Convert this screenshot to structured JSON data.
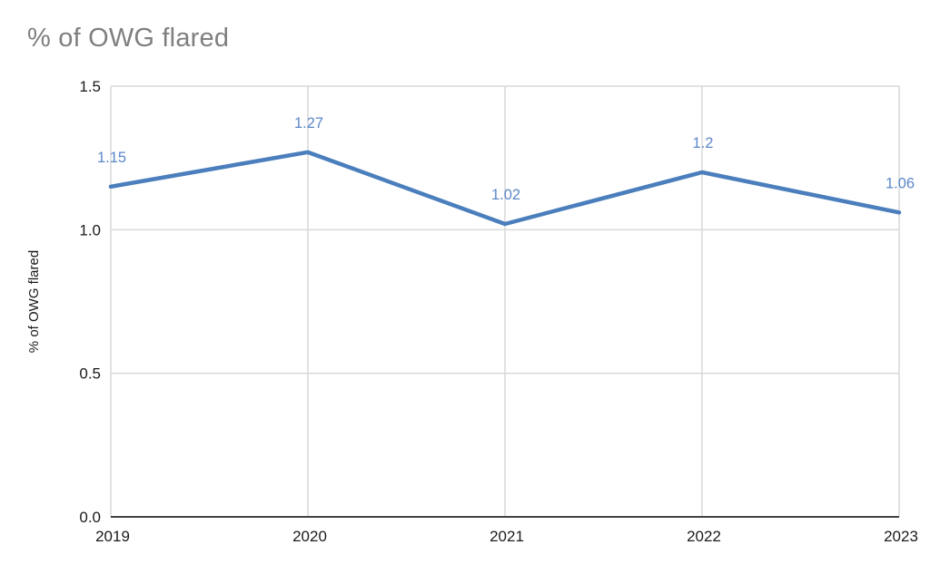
{
  "chart_data": {
    "type": "line",
    "title": "% of OWG flared",
    "xlabel": "",
    "ylabel": "% of OWG flared",
    "categories": [
      "2019",
      "2020",
      "2021",
      "2022",
      "2023"
    ],
    "series": [
      {
        "name": "% of OWG flared",
        "values": [
          1.15,
          1.27,
          1.02,
          1.2,
          1.06
        ],
        "point_labels": [
          "1.15",
          "1.27",
          "1.02",
          "1.2",
          "1.06"
        ]
      }
    ],
    "ylim": [
      0,
      1.5
    ],
    "yticks": [
      0,
      0.5,
      1,
      1.5
    ],
    "ytick_labels": [
      "0.0",
      "0.5",
      "1.0",
      "1.5"
    ],
    "grid": true,
    "legend": "none"
  },
  "styles": {
    "series_color": "#4a7ebc",
    "point_label_color": "#5b87c8",
    "title_color": "#7f7f7f",
    "grid_color": "#d9d9d9",
    "axis_color": "#424242",
    "tick_label_color": "#1a1a1a"
  }
}
